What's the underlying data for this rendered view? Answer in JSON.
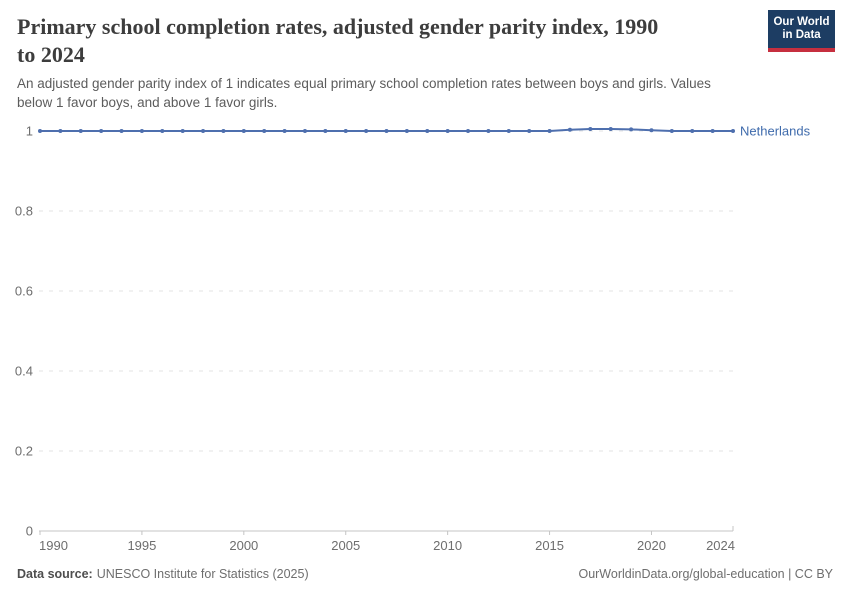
{
  "header": {
    "title_lines": [
      "Primary school completion rates, adjusted gender parity index, 1990",
      "to 2024"
    ],
    "subtitle_lines": [
      "An adjusted gender parity index of 1 indicates equal primary school completion rates between boys and girls. Values",
      "below 1 favor boys, and above 1 favor girls."
    ],
    "logo": {
      "line1": "Our World",
      "line2": "in Data",
      "bg_color": "#1d3d63",
      "bar_color": "#c62f3f"
    }
  },
  "chart_data": {
    "type": "line",
    "title": "Primary school completion rates, adjusted gender parity index, 1990 to 2024",
    "x": [
      1990,
      1991,
      1992,
      1993,
      1994,
      1995,
      1996,
      1997,
      1998,
      1999,
      2000,
      2001,
      2002,
      2003,
      2004,
      2005,
      2006,
      2007,
      2008,
      2009,
      2010,
      2011,
      2012,
      2013,
      2014,
      2015,
      2016,
      2017,
      2018,
      2019,
      2020,
      2021,
      2022,
      2023,
      2024
    ],
    "series": [
      {
        "name": "Netherlands",
        "color": "#4e6fae",
        "label_color": "#3f6bac",
        "values": [
          1,
          1,
          1,
          1,
          1,
          1,
          1,
          1,
          1,
          1,
          1,
          1,
          1,
          1,
          1,
          1,
          1,
          1,
          1,
          1,
          1,
          1,
          1,
          1,
          1,
          1,
          1.003,
          1.005,
          1.005,
          1.004,
          1.002,
          1,
          1,
          1,
          1
        ]
      }
    ],
    "xlim": [
      1990,
      2024
    ],
    "ylim": [
      0,
      1
    ],
    "x_ticks": [
      1990,
      1995,
      2000,
      2005,
      2010,
      2015,
      2020,
      2024
    ],
    "y_ticks": [
      0,
      0.2,
      0.4,
      0.6,
      0.8,
      1
    ],
    "grid": "horizontal-dashed",
    "grid_color": "#e3e3e3",
    "axis_color": "#c4c4c4",
    "tick_label_color": "#6e6e6e",
    "marker": "circle",
    "legend_position": "end-of-line"
  },
  "footer": {
    "source_label": "Data source:",
    "source_value": "UNESCO Institute for Statistics (2025)",
    "credit": "OurWorldinData.org/global-education | CC BY"
  }
}
